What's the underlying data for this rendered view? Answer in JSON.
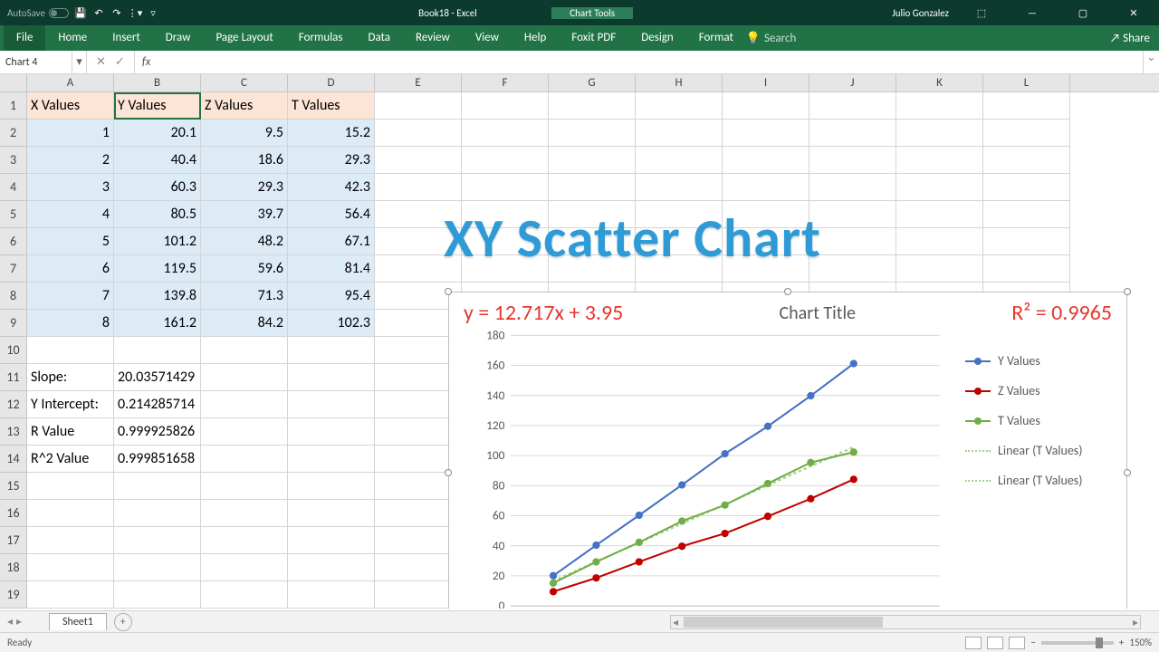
{
  "titlebar": {
    "autosave": "AutoSave",
    "autosave_state": "Off",
    "doc_title": "Book18  -  Excel",
    "chart_tools": "Chart Tools",
    "user": "Julio Gonzalez"
  },
  "ribbon": {
    "tabs": [
      "File",
      "Home",
      "Insert",
      "Draw",
      "Page Layout",
      "Formulas",
      "Data",
      "Review",
      "View",
      "Help",
      "Foxit PDF",
      "Design",
      "Format"
    ],
    "search": "Search",
    "share": "Share"
  },
  "namebox": "Chart 4",
  "fx": "fx",
  "columns": [
    "A",
    "B",
    "C",
    "D",
    "E",
    "F",
    "G",
    "H",
    "I",
    "J",
    "K",
    "L"
  ],
  "rows": [
    1,
    2,
    3,
    4,
    5,
    6,
    7,
    8,
    9,
    10,
    11,
    12,
    13,
    14,
    15,
    16,
    17,
    18,
    19
  ],
  "table": {
    "headers": [
      "X Values",
      "Y Values",
      "Z Values",
      "T Values"
    ],
    "data": [
      [
        1,
        20.1,
        9.5,
        15.2
      ],
      [
        2,
        40.4,
        18.6,
        29.3
      ],
      [
        3,
        60.3,
        29.3,
        42.3
      ],
      [
        4,
        80.5,
        39.7,
        56.4
      ],
      [
        5,
        101.2,
        48.2,
        67.1
      ],
      [
        6,
        119.5,
        59.6,
        81.4
      ],
      [
        7,
        139.8,
        71.3,
        95.4
      ],
      [
        8,
        161.2,
        84.2,
        102.3
      ]
    ]
  },
  "stats": [
    {
      "label": "Slope:",
      "value": "20.03571429"
    },
    {
      "label": "Y Intercept:",
      "value": "0.214285714"
    },
    {
      "label": "R Value",
      "value": "0.999925826"
    },
    {
      "label": "R^2 Value",
      "value": "0.999851658"
    }
  ],
  "overlay_title": "XY Scatter Chart",
  "chart": {
    "equation": "y = 12.717x + 3.95",
    "title": "Chart Title",
    "r2": "R² = 0.9965",
    "ylim": [
      0,
      180
    ],
    "ytick_step": 20,
    "xlim": [
      0,
      10
    ],
    "xtick_step": 2,
    "series": [
      {
        "name": "Y Values",
        "color": "#4472c4",
        "x": [
          1,
          2,
          3,
          4,
          5,
          6,
          7,
          8
        ],
        "y": [
          20.1,
          40.4,
          60.3,
          80.5,
          101.2,
          119.5,
          139.8,
          161.2
        ]
      },
      {
        "name": "Z Values",
        "color": "#c00000",
        "x": [
          1,
          2,
          3,
          4,
          5,
          6,
          7,
          8
        ],
        "y": [
          9.5,
          18.6,
          29.3,
          39.7,
          48.2,
          59.6,
          71.3,
          84.2
        ]
      },
      {
        "name": "T Values",
        "color": "#70ad47",
        "x": [
          1,
          2,
          3,
          4,
          5,
          6,
          7,
          8
        ],
        "y": [
          15.2,
          29.3,
          42.3,
          56.4,
          67.1,
          81.4,
          95.4,
          102.3
        ]
      }
    ],
    "trendlines": [
      {
        "name": "Linear (T Values)",
        "color": "#a9d18e",
        "slope": 12.717,
        "intercept": 3.95
      },
      {
        "name": "Linear (T Values)",
        "color": "#a9d18e",
        "slope": 12.717,
        "intercept": 3.95
      }
    ],
    "grid_color": "#d9d9d9",
    "axis_color": "#bfbfbf",
    "label_color": "#595959",
    "marker_radius": 4,
    "line_width": 2
  },
  "sheet_tab": "Sheet1",
  "status": "Ready",
  "zoom": "150%"
}
